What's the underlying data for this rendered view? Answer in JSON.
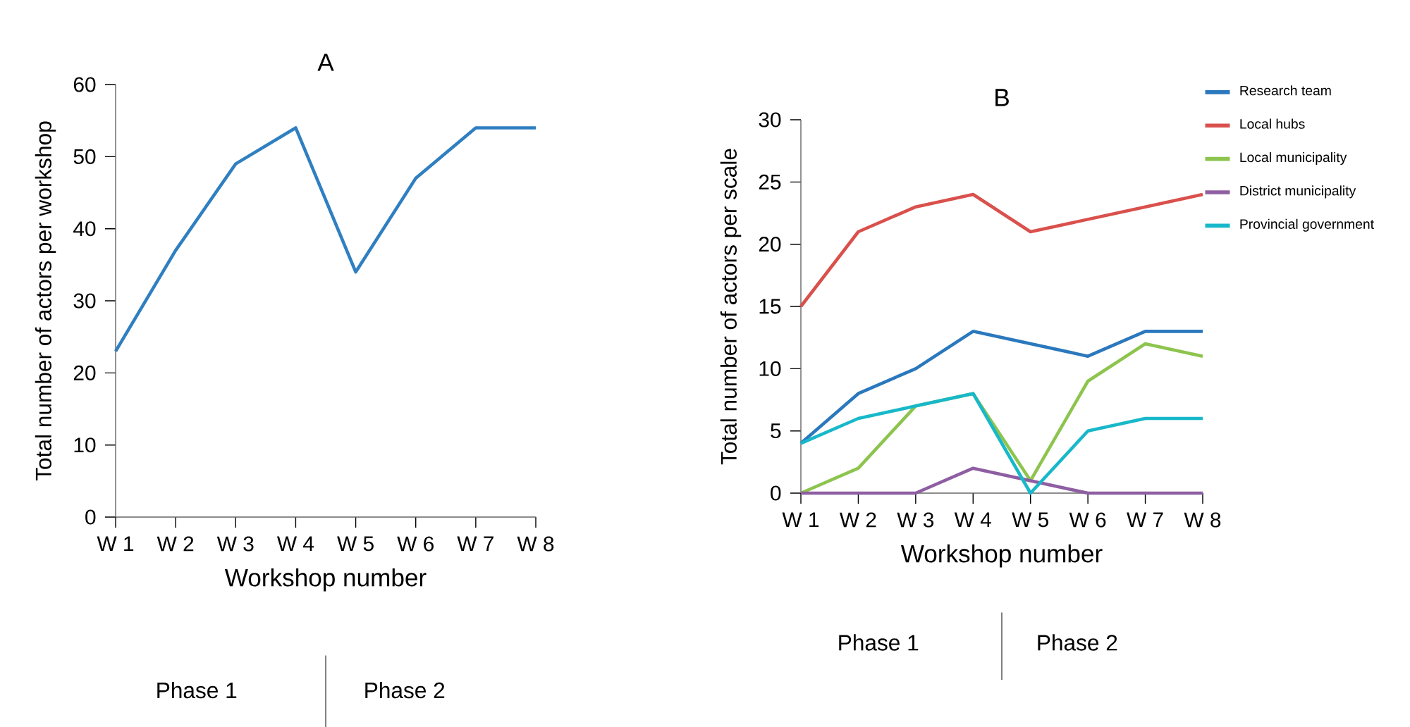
{
  "chart_data": [
    {
      "type": "line",
      "title": "A",
      "xlabel": "Workshop number",
      "ylabel": "Total number of actors per workshop",
      "categories": [
        "W 1",
        "W 2",
        "W 3",
        "W 4",
        "W 5",
        "W 6",
        "W 7",
        "W 8"
      ],
      "ylim": [
        0,
        60
      ],
      "yticks": [
        0,
        10,
        20,
        30,
        40,
        50,
        60
      ],
      "legend": false,
      "series": [
        {
          "color": "#2f7fc1",
          "values": [
            23,
            37,
            49,
            54,
            34,
            47,
            54,
            54
          ]
        }
      ],
      "annotations": [
        "Phase 1",
        "Phase 2"
      ]
    },
    {
      "type": "line",
      "title": "B",
      "xlabel": "Workshop number",
      "ylabel": "Total number of actors per scale",
      "categories": [
        "W 1",
        "W 2",
        "W 3",
        "W 4",
        "W 5",
        "W 6",
        "W 7",
        "W 8"
      ],
      "ylim": [
        0,
        30
      ],
      "yticks": [
        0,
        5,
        10,
        15,
        20,
        25,
        30
      ],
      "legend": "top right",
      "series": [
        {
          "name": "Research team",
          "color": "#2a78bd",
          "values": [
            4,
            8,
            10,
            13,
            12,
            11,
            13,
            13
          ]
        },
        {
          "name": "Local hubs",
          "color": "#d9504c",
          "values": [
            15,
            21,
            23,
            24,
            21,
            22,
            23,
            24
          ]
        },
        {
          "name": "Local municipality",
          "color": "#8dc44e",
          "values": [
            0,
            2,
            7,
            8,
            1,
            9,
            12,
            11
          ]
        },
        {
          "name": "District municipality",
          "color": "#8e5ea2",
          "values": [
            0,
            0,
            0,
            2,
            1,
            0,
            0,
            0
          ]
        },
        {
          "name": "Provincial government",
          "color": "#17b8c9",
          "values": [
            4,
            6,
            7,
            8,
            0,
            5,
            6,
            6
          ]
        }
      ],
      "annotations": [
        "Phase 1",
        "Phase 2"
      ]
    }
  ]
}
